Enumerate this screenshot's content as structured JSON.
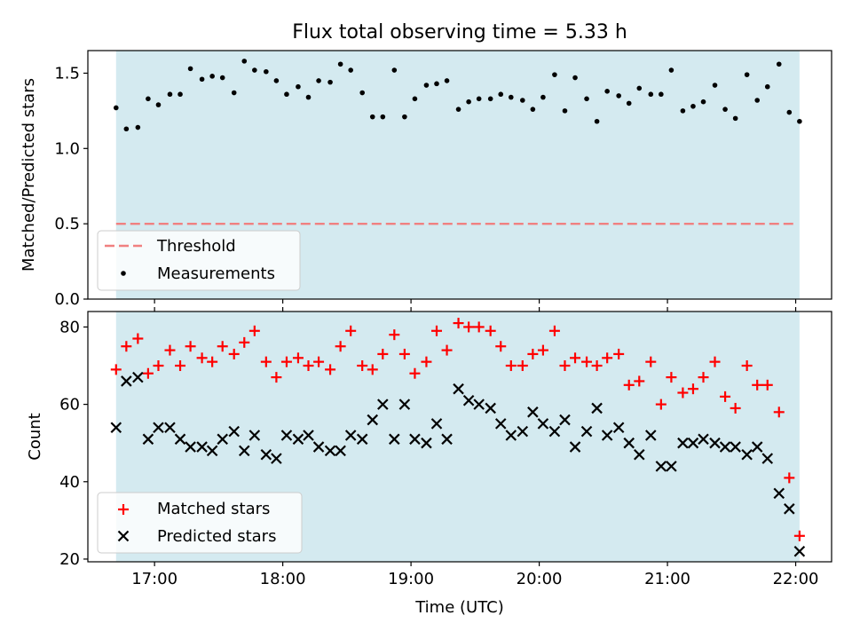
{
  "title": "Flux total observing time = 5.33 h",
  "colors": {
    "shade": "#d4eaf0",
    "threshold": "#f08080",
    "matched": "#ff0000",
    "predicted": "#000000"
  },
  "chart_data": [
    {
      "type": "scatter",
      "panel": "top",
      "ylabel": "Matched/Predicted stars",
      "ylim": [
        0.0,
        1.65
      ],
      "yticks": [
        "0.0",
        "0.5",
        "1.0",
        "1.5"
      ],
      "xlim": [
        16.48,
        22.28
      ],
      "shaded_x_range": [
        16.7,
        22.03
      ],
      "threshold": {
        "name": "Threshold",
        "value": 0.5,
        "x_range": [
          16.7,
          22.0
        ]
      },
      "series": [
        {
          "name": "Measurements",
          "x": [
            16.7,
            16.78,
            16.87,
            16.95,
            17.03,
            17.12,
            17.2,
            17.28,
            17.37,
            17.45,
            17.53,
            17.62,
            17.7,
            17.78,
            17.87,
            17.95,
            18.03,
            18.12,
            18.2,
            18.28,
            18.37,
            18.45,
            18.53,
            18.62,
            18.7,
            18.78,
            18.87,
            18.95,
            19.03,
            19.12,
            19.2,
            19.28,
            19.37,
            19.45,
            19.53,
            19.62,
            19.7,
            19.78,
            19.87,
            19.95,
            20.03,
            20.12,
            20.2,
            20.28,
            20.37,
            20.45,
            20.53,
            20.62,
            20.7,
            20.78,
            20.87,
            20.95,
            21.03,
            21.12,
            21.2,
            21.28,
            21.37,
            21.45,
            21.53,
            21.62,
            21.7,
            21.78,
            21.87,
            21.95,
            22.03
          ],
          "y": [
            1.27,
            1.13,
            1.14,
            1.33,
            1.29,
            1.36,
            1.36,
            1.53,
            1.46,
            1.48,
            1.47,
            1.37,
            1.58,
            1.52,
            1.51,
            1.45,
            1.36,
            1.41,
            1.34,
            1.45,
            1.44,
            1.56,
            1.52,
            1.37,
            1.21,
            1.21,
            1.52,
            1.21,
            1.33,
            1.42,
            1.43,
            1.45,
            1.26,
            1.31,
            1.33,
            1.33,
            1.36,
            1.34,
            1.32,
            1.26,
            1.34,
            1.49,
            1.25,
            1.47,
            1.33,
            1.18,
            1.38,
            1.35,
            1.3,
            1.4,
            1.36,
            1.36,
            1.52,
            1.25,
            1.28,
            1.31,
            1.42,
            1.26,
            1.2,
            1.49,
            1.32,
            1.41,
            1.56,
            1.24,
            1.18
          ]
        }
      ],
      "legend": [
        "Threshold",
        "Measurements"
      ],
      "legend_position": "lower-left"
    },
    {
      "type": "scatter",
      "panel": "bottom",
      "xlabel": "Time (UTC)",
      "ylabel": "Count",
      "ylim": [
        19.3,
        84.0
      ],
      "yticks": [
        "20",
        "40",
        "60",
        "80"
      ],
      "xlim": [
        16.48,
        22.28
      ],
      "xticks": [
        "17:00",
        "18:00",
        "19:00",
        "20:00",
        "21:00",
        "22:00"
      ],
      "shaded_x_range": [
        16.7,
        22.03
      ],
      "series": [
        {
          "name": "Matched stars",
          "x": [
            16.7,
            16.78,
            16.87,
            16.95,
            17.03,
            17.12,
            17.2,
            17.28,
            17.37,
            17.45,
            17.53,
            17.62,
            17.7,
            17.78,
            17.87,
            17.95,
            18.03,
            18.12,
            18.2,
            18.28,
            18.37,
            18.45,
            18.53,
            18.62,
            18.7,
            18.78,
            18.87,
            18.95,
            19.03,
            19.12,
            19.2,
            19.28,
            19.37,
            19.45,
            19.53,
            19.62,
            19.7,
            19.78,
            19.87,
            19.95,
            20.03,
            20.12,
            20.2,
            20.28,
            20.37,
            20.45,
            20.53,
            20.62,
            20.7,
            20.78,
            20.87,
            20.95,
            21.03,
            21.12,
            21.2,
            21.28,
            21.37,
            21.45,
            21.53,
            21.62,
            21.7,
            21.78,
            21.87,
            21.95,
            22.03
          ],
          "y": [
            69,
            75,
            77,
            68,
            70,
            74,
            70,
            75,
            72,
            71,
            75,
            73,
            76,
            79,
            71,
            67,
            71,
            72,
            70,
            71,
            69,
            75,
            79,
            70,
            69,
            73,
            78,
            73,
            68,
            71,
            79,
            74,
            81,
            80,
            80,
            79,
            75,
            70,
            70,
            73,
            74,
            79,
            70,
            72,
            71,
            70,
            72,
            73,
            65,
            66,
            71,
            60,
            67,
            63,
            64,
            67,
            71,
            62,
            59,
            70,
            65,
            65,
            58,
            41,
            26
          ]
        },
        {
          "name": "Predicted stars",
          "x": [
            16.7,
            16.78,
            16.87,
            16.95,
            17.03,
            17.12,
            17.2,
            17.28,
            17.37,
            17.45,
            17.53,
            17.62,
            17.7,
            17.78,
            17.87,
            17.95,
            18.03,
            18.12,
            18.2,
            18.28,
            18.37,
            18.45,
            18.53,
            18.62,
            18.7,
            18.78,
            18.87,
            18.95,
            19.03,
            19.12,
            19.2,
            19.28,
            19.37,
            19.45,
            19.53,
            19.62,
            19.7,
            19.78,
            19.87,
            19.95,
            20.03,
            20.12,
            20.2,
            20.28,
            20.37,
            20.45,
            20.53,
            20.62,
            20.7,
            20.78,
            20.87,
            20.95,
            21.03,
            21.12,
            21.2,
            21.28,
            21.37,
            21.45,
            21.53,
            21.62,
            21.7,
            21.78,
            21.87,
            21.95,
            22.03
          ],
          "y": [
            54,
            66,
            67,
            51,
            54,
            54,
            51,
            49,
            49,
            48,
            51,
            53,
            48,
            52,
            47,
            46,
            52,
            51,
            52,
            49,
            48,
            48,
            52,
            51,
            56,
            60,
            51,
            60,
            51,
            50,
            55,
            51,
            64,
            61,
            60,
            59,
            55,
            52,
            53,
            58,
            55,
            53,
            56,
            49,
            53,
            59,
            52,
            54,
            50,
            47,
            52,
            44,
            44,
            50,
            50,
            51,
            50,
            49,
            49,
            47,
            49,
            46,
            37,
            33,
            22
          ]
        }
      ],
      "legend": [
        "Matched stars",
        "Predicted stars"
      ],
      "legend_position": "lower-left"
    }
  ]
}
